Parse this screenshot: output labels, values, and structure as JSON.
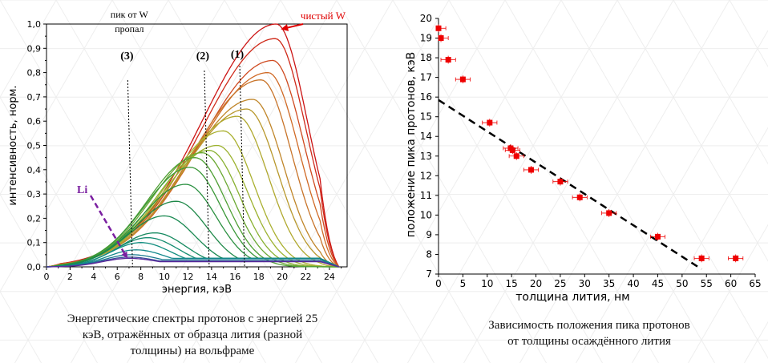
{
  "left_caption": [
    "Энергетические спектры протонов с энергией 25",
    "кэВ, отражённых от образца лития (разной",
    "толщины) на вольфраме"
  ],
  "right_caption": [
    "Зависимость положения пика протонов",
    "от толщины осаждённого лития"
  ],
  "chart_data": [
    {
      "type": "line",
      "title": "",
      "xlabel": "энергия, кэВ",
      "ylabel": "интенсивность, норм.",
      "xlim": [
        0,
        25.5
      ],
      "ylim": [
        0,
        1.0
      ],
      "xticks": [
        "0",
        "2",
        "4",
        "6",
        "8",
        "10",
        "12",
        "14",
        "16",
        "18",
        "20",
        "22",
        "24"
      ],
      "yticks": [
        "0,0",
        "0,1",
        "0,2",
        "0,3",
        "0,4",
        "0,5",
        "0,6",
        "0,7",
        "0,8",
        "0,9",
        "1,0"
      ],
      "grid": false,
      "series": [
        {
          "peak_x": 19.5,
          "peak_y": 1.0,
          "color": "#cc1414"
        },
        {
          "peak_x": 19.4,
          "peak_y": 0.94,
          "color": "#cf2a1a"
        },
        {
          "peak_x": 19.2,
          "peak_y": 0.85,
          "color": "#cf4a20"
        },
        {
          "peak_x": 18.8,
          "peak_y": 0.8,
          "color": "#d06a26"
        },
        {
          "peak_x": 18.2,
          "peak_y": 0.77,
          "color": "#c8742a"
        },
        {
          "peak_x": 17.5,
          "peak_y": 0.69,
          "color": "#c0862a"
        },
        {
          "peak_x": 17.0,
          "peak_y": 0.65,
          "color": "#b8982c"
        },
        {
          "peak_x": 16.2,
          "peak_y": 0.62,
          "color": "#b0a82e"
        },
        {
          "peak_x": 15.0,
          "peak_y": 0.56,
          "color": "#aab030"
        },
        {
          "peak_x": 14.5,
          "peak_y": 0.5,
          "color": "#9cb230"
        },
        {
          "peak_x": 13.8,
          "peak_y": 0.48,
          "color": "#88b030"
        },
        {
          "peak_x": 13.2,
          "peak_y": 0.47,
          "color": "#6aa832"
        },
        {
          "peak_x": 12.6,
          "peak_y": 0.45,
          "color": "#4fa034"
        },
        {
          "peak_x": 12.2,
          "peak_y": 0.41,
          "color": "#3a9838"
        },
        {
          "peak_x": 11.8,
          "peak_y": 0.34,
          "color": "#2a9040"
        },
        {
          "peak_x": 11.0,
          "peak_y": 0.27,
          "color": "#1e8848"
        },
        {
          "peak_x": 10.0,
          "peak_y": 0.21,
          "color": "#188850"
        },
        {
          "peak_x": 9.2,
          "peak_y": 0.14,
          "color": "#168a60"
        },
        {
          "peak_x": 8.6,
          "peak_y": 0.12,
          "color": "#148c70"
        },
        {
          "peak_x": 8.0,
          "peak_y": 0.1,
          "color": "#128e80"
        },
        {
          "peak_x": 7.6,
          "peak_y": 0.07,
          "color": "#14888c"
        },
        {
          "peak_x": 7.2,
          "peak_y": 0.05,
          "color": "#1a7a90"
        },
        {
          "peak_x": 7.0,
          "peak_y": 0.04,
          "color": "#3a4a9a"
        },
        {
          "peak_x": 7.0,
          "peak_y": 0.035,
          "color": "#5a2a9a"
        }
      ],
      "annotations": [
        {
          "text": "чистый W",
          "x": 19.6,
          "color": "#e00000"
        },
        {
          "text_lines": [
            "пик от W",
            "пропал"
          ],
          "marker": "(3)",
          "x": 7.3
        },
        {
          "marker": "(2)",
          "x": 13.8
        },
        {
          "marker": "(1)",
          "x": 16.8
        },
        {
          "text": "Li",
          "color": "#7a1fa0"
        }
      ]
    },
    {
      "type": "scatter",
      "title": "",
      "xlabel": "толщина лития, нм",
      "ylabel": "положение пика протонов, кэВ",
      "xlim": [
        0,
        65
      ],
      "ylim": [
        7,
        20
      ],
      "xticks": [
        "0",
        "5",
        "10",
        "15",
        "20",
        "25",
        "30",
        "35",
        "40",
        "45",
        "50",
        "55",
        "60",
        "65"
      ],
      "yticks": [
        "7",
        "8",
        "9",
        "10",
        "11",
        "12",
        "13",
        "14",
        "15",
        "16",
        "17",
        "18",
        "19",
        "20"
      ],
      "grid": false,
      "points": [
        {
          "x": 0.0,
          "y": 19.5,
          "xerr": 1.5,
          "yerr": 0.2
        },
        {
          "x": 0.5,
          "y": 19.0,
          "xerr": 1.5,
          "yerr": 0.2
        },
        {
          "x": 2.0,
          "y": 17.9,
          "xerr": 1.5,
          "yerr": 0.2
        },
        {
          "x": 5.0,
          "y": 16.9,
          "xerr": 1.5,
          "yerr": 0.2
        },
        {
          "x": 10.5,
          "y": 14.7,
          "xerr": 1.5,
          "yerr": 0.2
        },
        {
          "x": 14.8,
          "y": 13.4,
          "xerr": 1.5,
          "yerr": 0.2
        },
        {
          "x": 15.2,
          "y": 13.3,
          "xerr": 1.5,
          "yerr": 0.2
        },
        {
          "x": 16.0,
          "y": 13.0,
          "xerr": 1.5,
          "yerr": 0.2
        },
        {
          "x": 19.0,
          "y": 12.3,
          "xerr": 1.5,
          "yerr": 0.2
        },
        {
          "x": 25.0,
          "y": 11.7,
          "xerr": 1.5,
          "yerr": 0.2
        },
        {
          "x": 29.0,
          "y": 10.9,
          "xerr": 1.5,
          "yerr": 0.2
        },
        {
          "x": 35.0,
          "y": 10.1,
          "xerr": 1.5,
          "yerr": 0.2
        },
        {
          "x": 45.0,
          "y": 8.9,
          "xerr": 1.5,
          "yerr": 0.2
        },
        {
          "x": 54.0,
          "y": 7.8,
          "xerr": 1.5,
          "yerr": 0.2
        },
        {
          "x": 61.0,
          "y": 7.8,
          "xerr": 1.5,
          "yerr": 0.2
        }
      ],
      "fit": {
        "x": [
          0,
          54
        ],
        "y": [
          15.85,
          7.25
        ]
      },
      "marker_color": "#ee0000"
    }
  ]
}
